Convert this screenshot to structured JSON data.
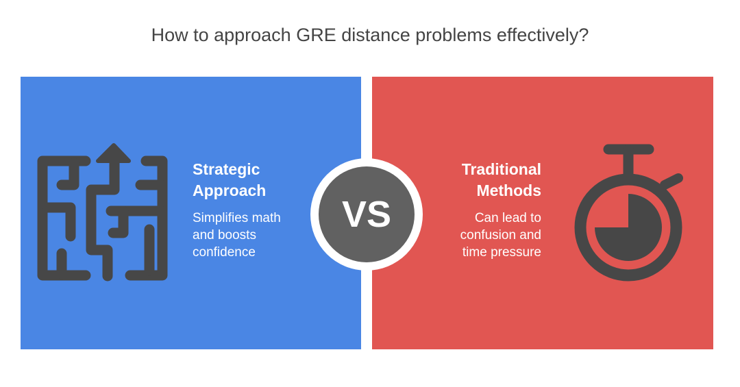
{
  "title": "How to approach GRE distance problems effectively?",
  "left": {
    "heading_line1": "Strategic",
    "heading_line2": "Approach",
    "desc_line1": "Simplifies math",
    "desc_line2": "and boosts",
    "desc_line3": "confidence",
    "icon": "maze-icon",
    "color": "#4A86E4"
  },
  "right": {
    "heading_line1": "Traditional",
    "heading_line2": "Methods",
    "desc_line1": "Can lead to",
    "desc_line2": "confusion and",
    "desc_line3": "time pressure",
    "icon": "stopwatch-icon",
    "color": "#E15652"
  },
  "vs_label": "VS"
}
